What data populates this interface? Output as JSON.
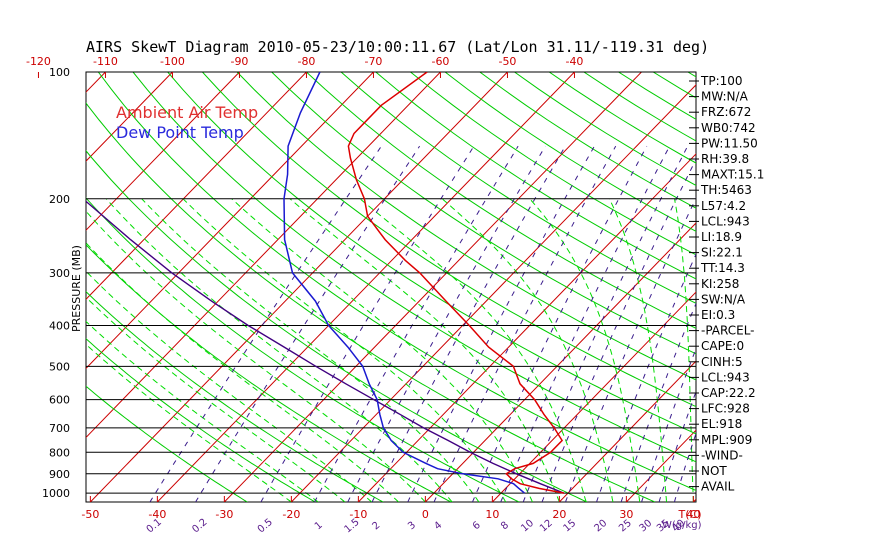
{
  "title": "AIRS SkewT Diagram 2010-05-23/10:00:11.67 (Lat/Lon 31.11/-119.31 deg)",
  "ylabel": "PRESSURE (MB)",
  "xlabel_bottom": "T(C)",
  "mix_label": "W(g/kg)",
  "legend": [
    {
      "label": "Ambient Air Temp",
      "color": "#e03030"
    },
    {
      "label": "Dew Point Temp",
      "color": "#2a2adc"
    }
  ],
  "colors": {
    "isotherm": "#cc0000",
    "dry_adiabat": "#00cc00",
    "moist_adiabat": "#00dd00",
    "mixing_ratio": "#3a1c8c",
    "temperature": "#dd0000",
    "dewpoint": "#1a1ad0",
    "parcel": "#400080",
    "isobar": "#000000"
  },
  "chart_data": {
    "type": "line",
    "y_scale": "log",
    "ylim": [
      1050,
      100
    ],
    "pressure_ticks": [
      100,
      200,
      300,
      400,
      500,
      600,
      700,
      800,
      900,
      1000
    ],
    "top_temp_ticks": [
      "-120",
      "-110",
      "-100",
      "-90",
      "-80",
      "-70",
      "-60",
      "-50",
      "-40"
    ],
    "bottom_temp_ticks": [
      "-50",
      "-40",
      "-30",
      "-20",
      "-10",
      "0",
      "10",
      "20",
      "30",
      "40"
    ],
    "mixing_ratio_ticks": [
      "0.1",
      "0.2",
      "0.5",
      "1",
      "1.5",
      "2",
      "3",
      "4",
      "6",
      "8",
      "10",
      "12",
      "15",
      "20",
      "25",
      "30",
      "35",
      "40"
    ],
    "series": [
      {
        "name": "Ambient Air Temp",
        "pressure": [
          1000,
          975,
          950,
          925,
          900,
          875,
          850,
          800,
          750,
          700,
          650,
          600,
          550,
          500,
          450,
          400,
          350,
          300,
          280,
          250,
          220,
          200,
          180,
          160,
          150,
          140,
          120,
          100
        ],
        "temperature": [
          19.4,
          15,
          11.5,
          9.5,
          8,
          8.5,
          10.5,
          11.5,
          11.5,
          8.5,
          5,
          1.5,
          -3,
          -6.5,
          -13,
          -19,
          -26,
          -34,
          -38,
          -44,
          -50,
          -53,
          -57,
          -61,
          -63,
          -64,
          -64,
          -62
        ]
      },
      {
        "name": "Dew Point Temp",
        "pressure": [
          1000,
          975,
          950,
          925,
          900,
          875,
          850,
          800,
          750,
          700,
          650,
          600,
          550,
          500,
          450,
          400,
          350,
          300,
          250,
          200,
          175,
          150,
          125,
          100
        ],
        "dewpoint": [
          13.5,
          12,
          10.5,
          7.5,
          1.5,
          -3,
          -5.5,
          -10.5,
          -14,
          -17,
          -19.5,
          -22,
          -25.5,
          -29,
          -34,
          -40,
          -45.5,
          -53,
          -59,
          -65,
          -68,
          -72,
          -75,
          -78
        ]
      },
      {
        "pressure": [
          1000,
          950,
          900,
          850,
          800,
          750,
          700,
          650,
          600,
          550,
          500,
          450,
          400,
          350,
          300,
          250,
          200,
          150,
          100
        ],
        "temperature": [
          19.4,
          14.5,
          9.5,
          4.5,
          -0.5,
          -5.5,
          -11,
          -16.5,
          -22.5,
          -29,
          -36,
          -43.5,
          -52,
          -61,
          -71,
          -82,
          -95,
          -110,
          -130
        ]
      }
    ]
  },
  "stats": [
    "TP:100",
    "MW:N/A",
    "FRZ:672",
    "WB0:742",
    "PW:11.50",
    "RH:39.8",
    "MAXT:15.1",
    "TH:5463",
    "L57:4.2",
    "LCL:943",
    "LI:18.9",
    "SI:22.1",
    "TT:14.3",
    "KI:258",
    "SW:N/A",
    "EI:0.3",
    "-PARCEL-",
    "CAPE:0",
    "CINH:5",
    "LCL:943",
    "CAP:22.2",
    "LFC:928",
    "EL:918",
    "MPL:909",
    "-WIND-",
    "NOT",
    "AVAIL"
  ]
}
